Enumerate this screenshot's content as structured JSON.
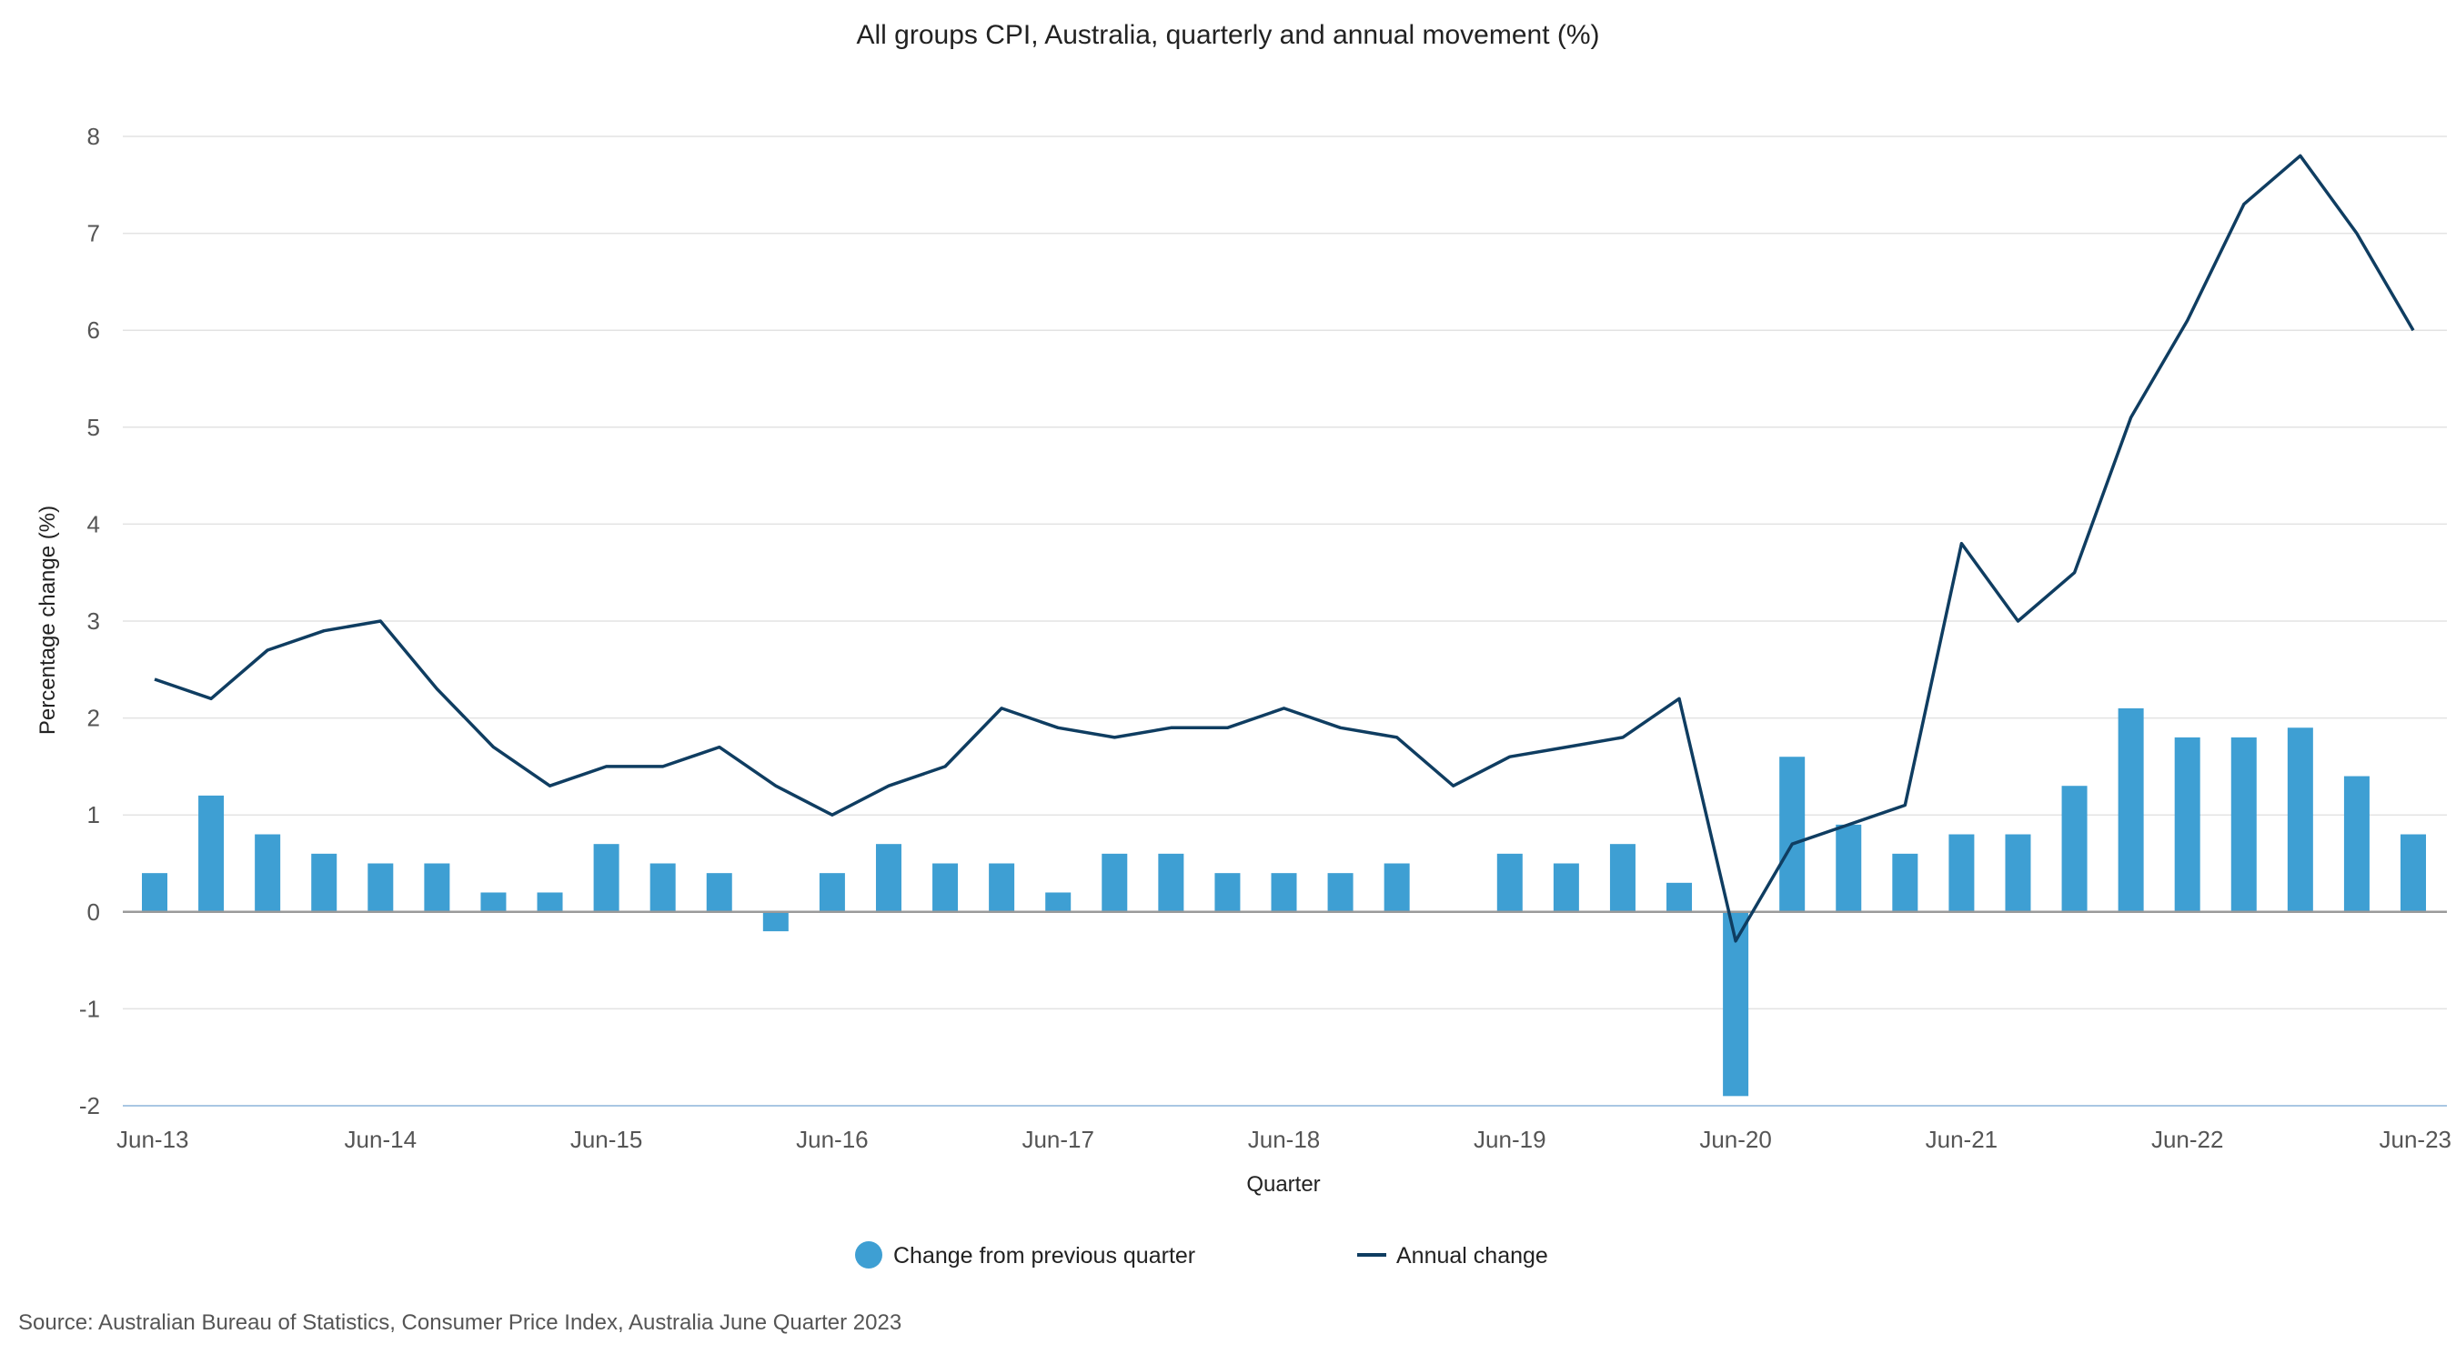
{
  "chart_data": {
    "type": "bar",
    "title": "All groups CPI, Australia, quarterly and annual movement (%)",
    "xlabel": "Quarter",
    "ylabel": "Percentage change (%)",
    "ylim": [
      -2,
      8
    ],
    "yticks": [
      -2,
      -1,
      0,
      1,
      2,
      3,
      4,
      5,
      6,
      7,
      8
    ],
    "ytick_labels": [
      "-2",
      "-1",
      "0",
      "1",
      "2",
      "3",
      "4",
      "5",
      "6",
      "7",
      "8"
    ],
    "grid": true,
    "legend_position": "bottom-center",
    "categories": [
      "Jun-13",
      "Sep-13",
      "Dec-13",
      "Mar-14",
      "Jun-14",
      "Sep-14",
      "Dec-14",
      "Mar-15",
      "Jun-15",
      "Sep-15",
      "Dec-15",
      "Mar-16",
      "Jun-16",
      "Sep-16",
      "Dec-16",
      "Mar-17",
      "Jun-17",
      "Sep-17",
      "Dec-17",
      "Mar-18",
      "Jun-18",
      "Sep-18",
      "Dec-18",
      "Mar-19",
      "Jun-19",
      "Sep-19",
      "Dec-19",
      "Mar-20",
      "Jun-20",
      "Sep-20",
      "Dec-20",
      "Mar-21",
      "Jun-21",
      "Sep-21",
      "Dec-21",
      "Mar-22",
      "Jun-22",
      "Sep-22",
      "Dec-22",
      "Mar-23",
      "Jun-23"
    ],
    "xtick_labels": [
      "Jun-13",
      "Jun-14",
      "Jun-15",
      "Jun-16",
      "Jun-17",
      "Jun-18",
      "Jun-19",
      "Jun-20",
      "Jun-21",
      "Jun-22",
      "Jun-23"
    ],
    "series": [
      {
        "name": "Change from previous quarter",
        "type": "bar",
        "color": "#3e9fd3",
        "values": [
          0.4,
          1.2,
          0.8,
          0.6,
          0.5,
          0.5,
          0.2,
          0.2,
          0.7,
          0.5,
          0.4,
          -0.2,
          0.4,
          0.7,
          0.5,
          0.5,
          0.2,
          0.6,
          0.6,
          0.4,
          0.4,
          0.4,
          0.5,
          0.0,
          0.6,
          0.5,
          0.7,
          0.3,
          -1.9,
          1.6,
          0.9,
          0.6,
          0.8,
          0.8,
          1.3,
          2.1,
          1.8,
          1.8,
          1.9,
          1.4,
          0.8
        ]
      },
      {
        "name": "Annual change",
        "type": "line",
        "color": "#0f3d61",
        "values": [
          2.4,
          2.2,
          2.7,
          2.9,
          3.0,
          2.3,
          1.7,
          1.3,
          1.5,
          1.5,
          1.7,
          1.3,
          1.0,
          1.3,
          1.5,
          2.1,
          1.9,
          1.8,
          1.9,
          1.9,
          2.1,
          1.9,
          1.8,
          1.3,
          1.6,
          1.7,
          1.8,
          2.2,
          -0.3,
          0.7,
          0.9,
          1.1,
          3.8,
          3.0,
          3.5,
          5.1,
          6.1,
          7.3,
          7.8,
          7.0,
          6.0
        ]
      }
    ]
  },
  "source": "Source: Australian Bureau of Statistics, Consumer Price Index, Australia June Quarter 2023"
}
